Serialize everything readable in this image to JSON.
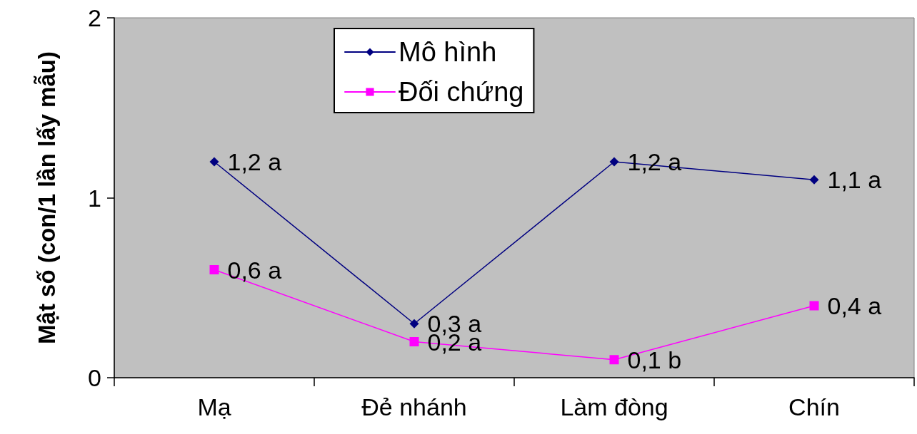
{
  "chart_data": {
    "type": "line",
    "ylabel": "Mật số (con/1 lần lấy mẫu)",
    "categories": [
      "Mạ",
      "Đẻ nhánh",
      "Làm đòng",
      "Chín"
    ],
    "series": [
      {
        "name": "Mô hình",
        "color": "#000080",
        "marker": "diamond",
        "values": [
          1.2,
          0.3,
          1.2,
          1.1
        ],
        "value_labels": [
          "1,2 a",
          "0,3 a",
          "1,2 a",
          "1,1 a"
        ]
      },
      {
        "name": "Đối chứng",
        "color": "#ff00ff",
        "marker": "square",
        "values": [
          0.6,
          0.2,
          0.1,
          0.4
        ],
        "value_labels": [
          "0,6 a",
          "0,2 a",
          "0,1 b",
          "0,4 a"
        ]
      }
    ],
    "ylim": [
      0,
      2
    ],
    "yticks": [
      0,
      1,
      2
    ],
    "grid": false,
    "legend": "top",
    "line_style": "solid"
  }
}
